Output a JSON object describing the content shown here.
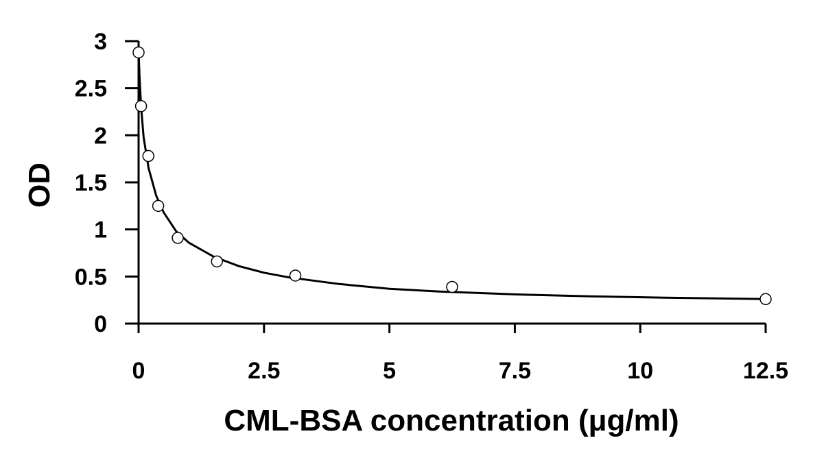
{
  "chart_data": {
    "type": "scatter",
    "title": "",
    "xlabel": "CML-BSA concentration (μg/ml)",
    "ylabel": "OD",
    "xlim": [
      0,
      12.5
    ],
    "ylim": [
      0,
      3
    ],
    "x_ticks": [
      0,
      2.5,
      5,
      7.5,
      10,
      12.5
    ],
    "x_tick_labels": [
      "0",
      "2.5",
      "5",
      "7.5",
      "10",
      "12.5"
    ],
    "y_ticks": [
      0,
      0.5,
      1,
      1.5,
      2,
      2.5,
      3
    ],
    "y_tick_labels": [
      "0",
      "0.5",
      "1",
      "1.5",
      "2",
      "2.5",
      "3"
    ],
    "grid": false,
    "legend": "none",
    "series": [
      {
        "marker": "open-circle",
        "x": [
          0,
          0.049,
          0.195,
          0.391,
          0.781,
          1.5625,
          3.125,
          6.25,
          12.5
        ],
        "y": [
          2.88,
          2.31,
          1.78,
          1.25,
          0.91,
          0.66,
          0.51,
          0.39,
          0.26
        ]
      }
    ],
    "fit_curve": {
      "style": "solid-black",
      "x": [
        0.005,
        0.02,
        0.05,
        0.1,
        0.2,
        0.35,
        0.5,
        0.75,
        1.0,
        1.5,
        2.0,
        2.5,
        3.0,
        4.0,
        5.0,
        6.0,
        7.5,
        9.0,
        10.5,
        12.5
      ],
      "y": [
        2.82,
        2.6,
        2.3,
        1.98,
        1.65,
        1.36,
        1.18,
        0.98,
        0.86,
        0.71,
        0.61,
        0.54,
        0.49,
        0.42,
        0.37,
        0.34,
        0.31,
        0.29,
        0.275,
        0.26
      ]
    }
  },
  "colors": {
    "axis": "#000000",
    "marker_stroke": "#000000",
    "marker_fill": "#ffffff",
    "curve": "#000000",
    "background": "#ffffff"
  }
}
